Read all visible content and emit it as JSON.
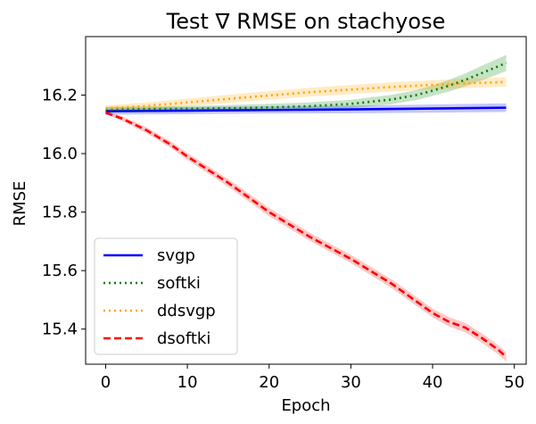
{
  "chart_data": {
    "type": "line",
    "title": "Test ∇ RMSE on stachyose",
    "xlabel": "Epoch",
    "ylabel": "RMSE",
    "xlim": [
      -2.45,
      51.45
    ],
    "ylim": [
      15.28,
      16.4
    ],
    "xticks": [
      0,
      10,
      20,
      30,
      40,
      50
    ],
    "xtick_labels": [
      "0",
      "10",
      "20",
      "30",
      "40",
      "50"
    ],
    "yticks": [
      15.4,
      15.6,
      15.8,
      16.0,
      16.2
    ],
    "ytick_labels": [
      "15.4",
      "15.6",
      "15.8",
      "16.0",
      "16.2"
    ],
    "legend_position": "lower-left",
    "series": [
      {
        "name": "svgp",
        "color": "#0000ff",
        "style": "solid",
        "x": [
          0,
          10,
          20,
          30,
          40,
          49
        ],
        "y": [
          16.145,
          16.147,
          16.149,
          16.151,
          16.154,
          16.157
        ],
        "band": [
          0.012,
          0.012,
          0.012,
          0.013,
          0.014,
          0.015
        ]
      },
      {
        "name": "softki",
        "color": "#008000",
        "style": "dotted",
        "x": [
          0,
          5,
          10,
          15,
          20,
          25,
          30,
          35,
          38,
          40,
          42,
          44,
          46,
          48,
          49
        ],
        "y": [
          16.15,
          16.152,
          16.153,
          16.155,
          16.158,
          16.162,
          16.17,
          16.185,
          16.2,
          16.215,
          16.232,
          16.252,
          16.275,
          16.298,
          16.31
        ],
        "band": [
          0.01,
          0.01,
          0.01,
          0.011,
          0.012,
          0.013,
          0.014,
          0.016,
          0.017,
          0.018,
          0.02,
          0.022,
          0.025,
          0.027,
          0.028
        ]
      },
      {
        "name": "ddsvgp",
        "color": "#ffa500",
        "style": "dotted",
        "x": [
          0,
          5,
          10,
          15,
          20,
          25,
          30,
          35,
          40,
          45,
          49
        ],
        "y": [
          16.155,
          16.163,
          16.175,
          16.187,
          16.199,
          16.21,
          16.219,
          16.228,
          16.235,
          16.241,
          16.245
        ],
        "band": [
          0.01,
          0.012,
          0.013,
          0.014,
          0.015,
          0.015,
          0.016,
          0.016,
          0.016,
          0.016,
          0.016
        ]
      },
      {
        "name": "dsoftki",
        "color": "#ff0000",
        "style": "dashed",
        "x": [
          0,
          2,
          5,
          8,
          10,
          15,
          20,
          25,
          30,
          35,
          40,
          42,
          44,
          46,
          48,
          49
        ],
        "y": [
          16.14,
          16.12,
          16.08,
          16.03,
          15.99,
          15.9,
          15.8,
          15.715,
          15.64,
          15.555,
          15.455,
          15.425,
          15.405,
          15.37,
          15.33,
          15.305
        ],
        "band": [
          0.006,
          0.008,
          0.01,
          0.011,
          0.012,
          0.013,
          0.014,
          0.014,
          0.014,
          0.015,
          0.015,
          0.016,
          0.016,
          0.016,
          0.016,
          0.016
        ]
      }
    ]
  }
}
